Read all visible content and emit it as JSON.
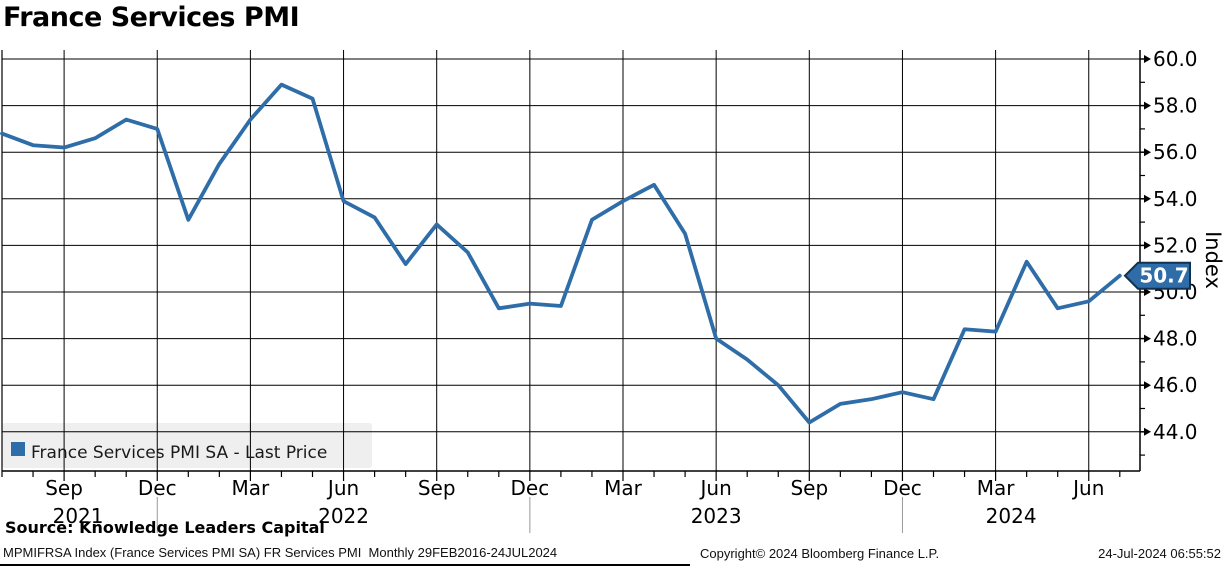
{
  "title": "France Services PMI",
  "legend": {
    "label": "France Services PMI SA - Last Price",
    "swatch_color": "#2E6DA8",
    "bg_color": "#efefef"
  },
  "y_axis_title": "Index",
  "last_value_badge": {
    "label": "50.7",
    "fill": "#2E6DA8",
    "border": "#12314f",
    "text_color": "#ffffff"
  },
  "footer": {
    "source": "Source: Knowledge Leaders Capital",
    "security": "MPMIFRSA Index (France Services PMI SA) FR Services PMI  Monthly 29FEB2016-24JUL2024",
    "copyright": "Copyright© 2024 Bloomberg Finance L.P.",
    "timestamp": "24-Jul-2024 06:55:52"
  },
  "chart_data": {
    "type": "line",
    "title": "France Services PMI",
    "series": [
      {
        "name": "France Services PMI SA - Last Price",
        "color": "#2E6DA8",
        "values": [
          56.8,
          56.3,
          56.2,
          56.6,
          57.4,
          57.0,
          53.1,
          55.5,
          57.4,
          58.9,
          58.3,
          53.9,
          53.2,
          51.2,
          52.9,
          51.7,
          49.3,
          49.5,
          49.4,
          53.1,
          53.9,
          54.6,
          52.5,
          48.0,
          47.1,
          46.0,
          44.4,
          45.2,
          45.4,
          45.7,
          45.4,
          48.4,
          48.3,
          51.3,
          49.3,
          49.6,
          50.7
        ]
      }
    ],
    "x": [
      "Jul 2021",
      "Aug 2021",
      "Sep 2021",
      "Oct 2021",
      "Nov 2021",
      "Dec 2021",
      "Jan 2022",
      "Feb 2022",
      "Mar 2022",
      "Apr 2022",
      "May 2022",
      "Jun 2022",
      "Jul 2022",
      "Aug 2022",
      "Sep 2022",
      "Oct 2022",
      "Nov 2022",
      "Dec 2022",
      "Jan 2023",
      "Feb 2023",
      "Mar 2023",
      "Apr 2023",
      "May 2023",
      "Jun 2023",
      "Jul 2023",
      "Aug 2023",
      "Sep 2023",
      "Oct 2023",
      "Nov 2023",
      "Dec 2023",
      "Jan 2024",
      "Feb 2024",
      "Mar 2024",
      "Apr 2024",
      "May 2024",
      "Jun 2024",
      "Jul 2024"
    ],
    "xticks": [
      {
        "i": 2,
        "label": "Sep"
      },
      {
        "i": 5,
        "label": "Dec"
      },
      {
        "i": 8,
        "label": "Mar"
      },
      {
        "i": 11,
        "label": "Jun"
      },
      {
        "i": 14,
        "label": "Sep"
      },
      {
        "i": 17,
        "label": "Dec"
      },
      {
        "i": 20,
        "label": "Mar"
      },
      {
        "i": 23,
        "label": "Jun"
      },
      {
        "i": 26,
        "label": "Sep"
      },
      {
        "i": 29,
        "label": "Dec"
      },
      {
        "i": 32,
        "label": "Mar"
      },
      {
        "i": 35,
        "label": "Jun"
      }
    ],
    "year_labels": [
      {
        "i": 2.45,
        "label": "2021"
      },
      {
        "i": 11,
        "label": "2022"
      },
      {
        "i": 23,
        "label": "2023"
      },
      {
        "i": 32.5,
        "label": "2024"
      }
    ],
    "year_separator_indices": [
      5,
      17,
      29
    ],
    "yticks": [
      {
        "v": 60,
        "label": "60.0"
      },
      {
        "v": 58,
        "label": "58.0"
      },
      {
        "v": 56,
        "label": "56.0"
      },
      {
        "v": 54,
        "label": "54.0"
      },
      {
        "v": 52,
        "label": "52.0"
      },
      {
        "v": 50,
        "label": "50.0"
      },
      {
        "v": 48,
        "label": "48.0"
      },
      {
        "v": 46,
        "label": "46.0"
      },
      {
        "v": 44,
        "label": "44.0"
      }
    ],
    "yticks_minor": [
      59,
      57,
      55,
      53,
      51,
      49,
      47,
      45,
      43
    ],
    "ylim": [
      42.3,
      60.4
    ],
    "ylabel": "Index",
    "xlabel": "",
    "grid": true,
    "legend_position": "bottom-left",
    "last_price": 50.7
  }
}
